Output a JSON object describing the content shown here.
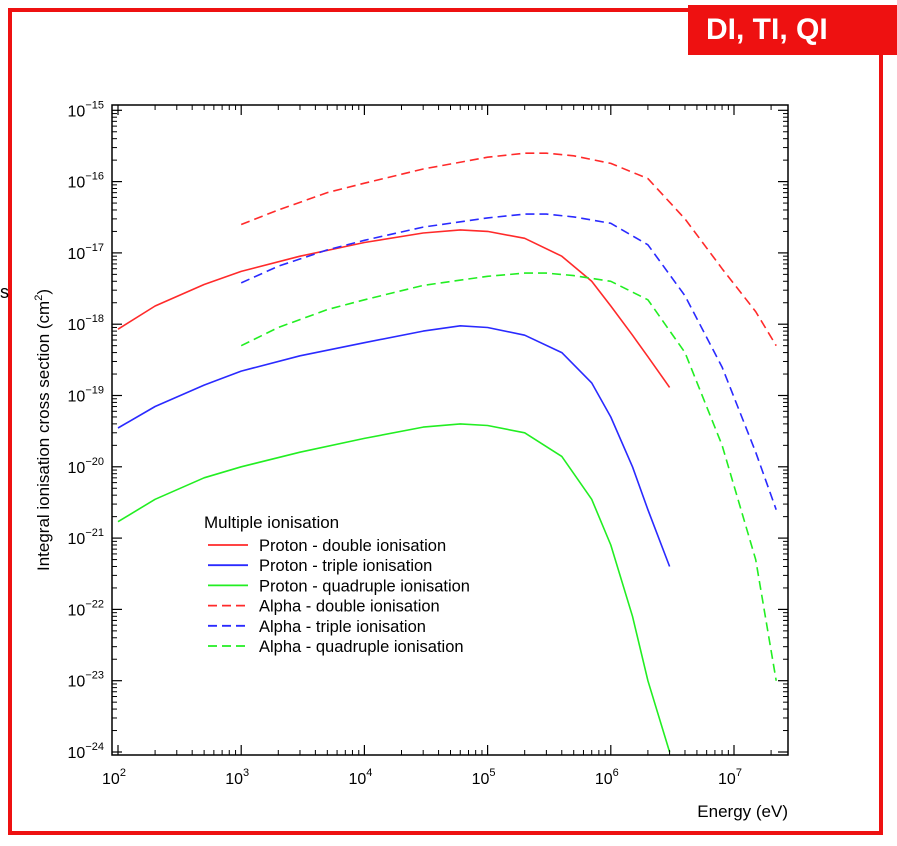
{
  "slide": {
    "tag_text": "DI, TI, QI",
    "side_text": "s",
    "frame_color": "#ee1111"
  },
  "chart_data": {
    "type": "line",
    "title": "",
    "xlabel": "Energy (eV)",
    "ylabel": "Integral ionisation cross section (cm",
    "ylabel_sup": "2",
    "ylabel_close": ")",
    "xscale": "log",
    "yscale": "log",
    "xlim": [
      100,
      30000000
    ],
    "ylim": [
      1e-24,
      1e-15
    ],
    "x_ticks": [
      {
        "base": "10",
        "exp": "2",
        "value": 100
      },
      {
        "base": "10",
        "exp": "3",
        "value": 1000
      },
      {
        "base": "10",
        "exp": "4",
        "value": 10000
      },
      {
        "base": "10",
        "exp": "5",
        "value": 100000
      },
      {
        "base": "10",
        "exp": "6",
        "value": 1000000
      },
      {
        "base": "10",
        "exp": "7",
        "value": 10000000
      }
    ],
    "y_ticks": [
      {
        "base": "10",
        "exp": "−24",
        "value": 1e-24
      },
      {
        "base": "10",
        "exp": "−23",
        "value": 1e-23
      },
      {
        "base": "10",
        "exp": "−22",
        "value": 1e-22
      },
      {
        "base": "10",
        "exp": "−21",
        "value": 1e-21
      },
      {
        "base": "10",
        "exp": "−20",
        "value": 1e-20
      },
      {
        "base": "10",
        "exp": "−19",
        "value": 1e-19
      },
      {
        "base": "10",
        "exp": "−18",
        "value": 1e-18
      },
      {
        "base": "10",
        "exp": "−17",
        "value": 1e-17
      },
      {
        "base": "10",
        "exp": "−16",
        "value": 1e-16
      },
      {
        "base": "10",
        "exp": "−15",
        "value": 1e-15
      }
    ],
    "grid": false,
    "legend_title": "Multiple ionisation",
    "legend_position": "bottom-left",
    "series": [
      {
        "name": "Proton - double ionisation",
        "color": "#ff2a2a",
        "dash": "solid",
        "points": [
          [
            100,
            8.5e-19
          ],
          [
            200,
            1.8e-18
          ],
          [
            500,
            3.6e-18
          ],
          [
            1000,
            5.5e-18
          ],
          [
            3000,
            9e-18
          ],
          [
            10000,
            1.4e-17
          ],
          [
            30000,
            1.9e-17
          ],
          [
            60000,
            2.1e-17
          ],
          [
            100000,
            2e-17
          ],
          [
            200000,
            1.6e-17
          ],
          [
            400000,
            9e-18
          ],
          [
            700000,
            4e-18
          ],
          [
            1000000,
            1.8e-18
          ],
          [
            1500000,
            7e-19
          ],
          [
            2000000,
            3.5e-19
          ],
          [
            3000000,
            1.3e-19
          ]
        ]
      },
      {
        "name": "Proton - triple ionisation",
        "color": "#2a2aff",
        "dash": "solid",
        "points": [
          [
            100,
            3.5e-20
          ],
          [
            200,
            7e-20
          ],
          [
            500,
            1.4e-19
          ],
          [
            1000,
            2.2e-19
          ],
          [
            3000,
            3.6e-19
          ],
          [
            10000,
            5.5e-19
          ],
          [
            30000,
            8e-19
          ],
          [
            60000,
            9.5e-19
          ],
          [
            100000,
            9e-19
          ],
          [
            200000,
            7e-19
          ],
          [
            400000,
            4e-19
          ],
          [
            700000,
            1.5e-19
          ],
          [
            1000000,
            5e-20
          ],
          [
            1500000,
            1e-20
          ],
          [
            2000000,
            2.5e-21
          ],
          [
            3000000,
            4e-22
          ]
        ]
      },
      {
        "name": "Proton - quadruple ionisation",
        "color": "#22ee22",
        "dash": "solid",
        "points": [
          [
            100,
            1.7e-21
          ],
          [
            200,
            3.5e-21
          ],
          [
            500,
            7e-21
          ],
          [
            1000,
            1e-20
          ],
          [
            3000,
            1.6e-20
          ],
          [
            10000,
            2.5e-20
          ],
          [
            30000,
            3.6e-20
          ],
          [
            60000,
            4e-20
          ],
          [
            100000,
            3.8e-20
          ],
          [
            200000,
            3e-20
          ],
          [
            400000,
            1.4e-20
          ],
          [
            700000,
            3.5e-21
          ],
          [
            1000000,
            8e-22
          ],
          [
            1500000,
            8e-23
          ],
          [
            2000000,
            1e-23
          ],
          [
            3000000,
            1e-24
          ]
        ]
      },
      {
        "name": "Alpha - double ionisation",
        "color": "#ff2a2a",
        "dash": "dashed",
        "points": [
          [
            1000,
            2.5e-17
          ],
          [
            2000,
            4e-17
          ],
          [
            5000,
            7e-17
          ],
          [
            10000,
            9.5e-17
          ],
          [
            30000,
            1.5e-16
          ],
          [
            100000,
            2.2e-16
          ],
          [
            200000,
            2.5e-16
          ],
          [
            300000,
            2.5e-16
          ],
          [
            500000,
            2.3e-16
          ],
          [
            1000000,
            1.8e-16
          ],
          [
            2000000,
            1.1e-16
          ],
          [
            4000000,
            3e-17
          ],
          [
            8000000,
            6e-18
          ],
          [
            15000000,
            1.5e-18
          ],
          [
            22000000,
            5e-19
          ]
        ]
      },
      {
        "name": "Alpha - triple ionisation",
        "color": "#2a2aff",
        "dash": "dashed",
        "points": [
          [
            1000,
            3.8e-18
          ],
          [
            2000,
            6.5e-18
          ],
          [
            5000,
            1.1e-17
          ],
          [
            10000,
            1.5e-17
          ],
          [
            30000,
            2.3e-17
          ],
          [
            100000,
            3.1e-17
          ],
          [
            200000,
            3.5e-17
          ],
          [
            300000,
            3.5e-17
          ],
          [
            500000,
            3.2e-17
          ],
          [
            1000000,
            2.6e-17
          ],
          [
            2000000,
            1.3e-17
          ],
          [
            4000000,
            2.5e-18
          ],
          [
            8000000,
            2.5e-19
          ],
          [
            15000000,
            1.6e-20
          ],
          [
            22000000,
            2.5e-21
          ]
        ]
      },
      {
        "name": "Alpha - quadruple ionisation",
        "color": "#22ee22",
        "dash": "dashed",
        "points": [
          [
            1000,
            5e-19
          ],
          [
            2000,
            9e-19
          ],
          [
            5000,
            1.6e-18
          ],
          [
            10000,
            2.2e-18
          ],
          [
            30000,
            3.5e-18
          ],
          [
            100000,
            4.7e-18
          ],
          [
            200000,
            5.2e-18
          ],
          [
            300000,
            5.2e-18
          ],
          [
            500000,
            4.8e-18
          ],
          [
            1000000,
            4e-18
          ],
          [
            2000000,
            2.2e-18
          ],
          [
            4000000,
            4e-19
          ],
          [
            8000000,
            2e-20
          ],
          [
            15000000,
            5e-22
          ],
          [
            22000000,
            1e-23
          ]
        ]
      }
    ]
  }
}
